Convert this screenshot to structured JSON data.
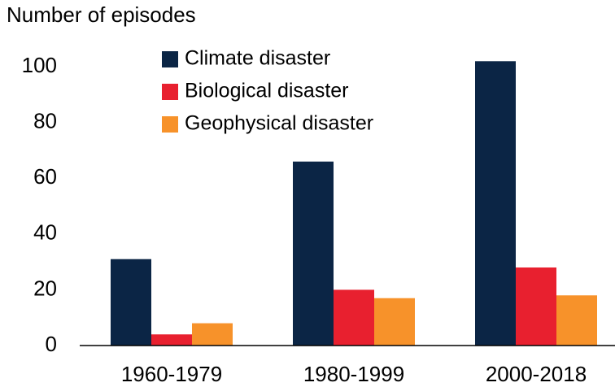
{
  "chart_data": {
    "type": "bar",
    "y_label": "Number of episodes",
    "categories": [
      "1960-1979",
      "1980-1999",
      "2000-2018"
    ],
    "series": [
      {
        "name": "Climate disaster",
        "color": "#0b2545",
        "values": [
          31,
          66,
          102
        ]
      },
      {
        "name": "Biological disaster",
        "color": "#e8202f",
        "values": [
          4,
          20,
          28
        ]
      },
      {
        "name": "Geophysical disaster",
        "color": "#f7922a",
        "values": [
          8,
          17,
          18
        ]
      }
    ],
    "ylim": [
      0,
      105
    ],
    "yticks": [
      0,
      20,
      40,
      60,
      80,
      100
    ],
    "grid": false
  }
}
